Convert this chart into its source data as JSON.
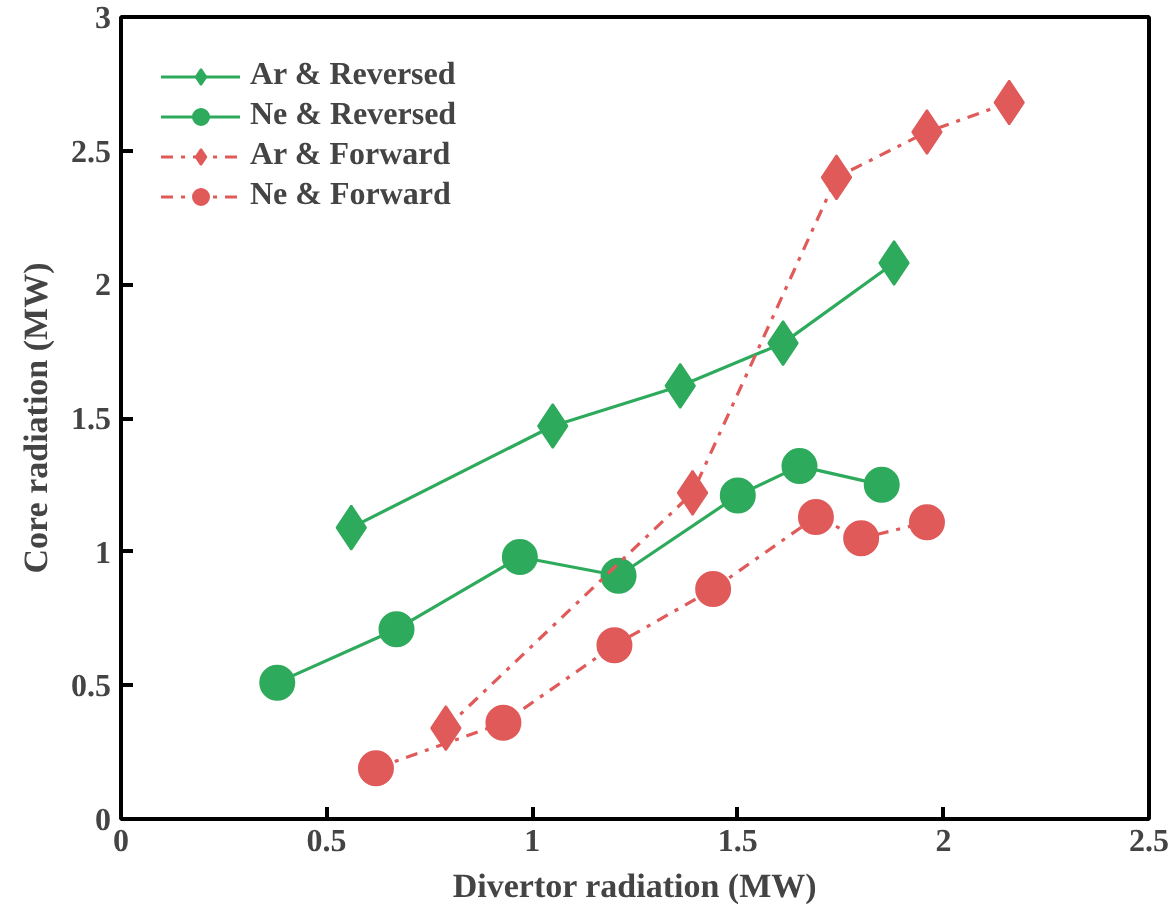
{
  "chart_data": {
    "type": "line",
    "xlabel": "Divertor radiation (MW)",
    "ylabel": "Core radiation (MW)",
    "xlim": [
      0,
      2.5
    ],
    "ylim": [
      0,
      3
    ],
    "xticks": [
      0,
      0.5,
      1,
      1.5,
      2,
      2.5
    ],
    "yticks": [
      0,
      0.5,
      1,
      1.5,
      2,
      2.5,
      3
    ],
    "grid": false,
    "legend": "top left",
    "series": [
      {
        "name": "Ar & Reversed",
        "color": "#2eaa5c",
        "marker": "diamond",
        "line_style": "solid",
        "x": [
          0.56,
          1.05,
          1.36,
          1.61,
          1.88
        ],
        "values": [
          1.09,
          1.47,
          1.62,
          1.78,
          2.08
        ]
      },
      {
        "name": "Ne & Reversed",
        "color": "#2eaa5c",
        "marker": "circle",
        "line_style": "solid",
        "x": [
          0.38,
          0.67,
          0.97,
          1.21,
          1.5,
          1.65,
          1.85
        ],
        "values": [
          0.51,
          0.71,
          0.98,
          0.91,
          1.21,
          1.32,
          1.25
        ]
      },
      {
        "name": "Ar & Forward",
        "color": "#e05a5a",
        "marker": "diamond",
        "line_style": "dashdot",
        "x": [
          0.79,
          1.39,
          1.74,
          1.96,
          2.16
        ],
        "values": [
          0.34,
          1.22,
          2.4,
          2.57,
          2.68
        ]
      },
      {
        "name": "Ne & Forward",
        "color": "#e05a5a",
        "marker": "circle",
        "line_style": "dashdot",
        "x": [
          0.62,
          0.93,
          1.2,
          1.44,
          1.69,
          1.8,
          1.96
        ],
        "values": [
          0.19,
          0.36,
          0.65,
          0.86,
          1.13,
          1.05,
          1.11
        ]
      }
    ]
  }
}
